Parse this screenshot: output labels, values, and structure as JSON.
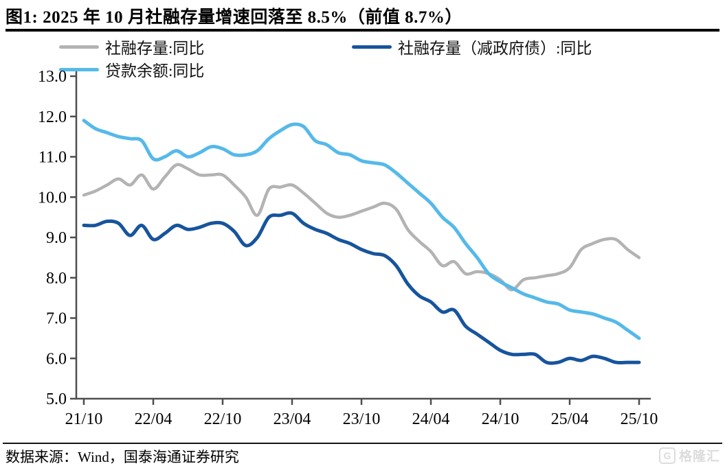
{
  "title": "图1:  2025 年 10 月社融存量增速回落至 8.5%（前值 8.7%）",
  "source_note": "数据来源：Wind，国泰海通证券研究",
  "watermark": {
    "icon_letter": "G",
    "text": "格隆汇"
  },
  "colors": {
    "gray_series": "#b3b3b3",
    "light_blue_series": "#55b9e9",
    "dark_blue_series": "#17549d",
    "axis": "#4d4d4d",
    "watermark": "#dcdcdc"
  },
  "chart_data": {
    "type": "line",
    "title": "2025 年 10 月社融存量增速回落至 8.5%（前值 8.7%）",
    "xlabel": "",
    "ylabel": "",
    "ylim": [
      5.0,
      13.0
    ],
    "y_ticks": [
      5,
      6,
      7,
      8,
      9,
      10,
      11,
      12,
      13
    ],
    "grid": false,
    "legend_position": "top",
    "x_tick_labels": [
      "21/10",
      "22/04",
      "22/10",
      "23/04",
      "23/10",
      "24/04",
      "24/10",
      "25/04",
      "25/10"
    ],
    "x": [
      "21/10",
      "21/11",
      "21/12",
      "22/01",
      "22/02",
      "22/03",
      "22/04",
      "22/05",
      "22/06",
      "22/07",
      "22/08",
      "22/09",
      "22/10",
      "22/11",
      "22/12",
      "23/01",
      "23/02",
      "23/03",
      "23/04",
      "23/05",
      "23/06",
      "23/07",
      "23/08",
      "23/09",
      "23/10",
      "23/11",
      "23/12",
      "24/01",
      "24/02",
      "24/03",
      "24/04",
      "24/05",
      "24/06",
      "24/07",
      "24/08",
      "24/09",
      "24/10",
      "24/11",
      "24/12",
      "25/01",
      "25/02",
      "25/03",
      "25/04",
      "25/05",
      "25/06",
      "25/07",
      "25/08",
      "25/09",
      "25/10"
    ],
    "series": [
      {
        "name": "社融存量:同比",
        "color": "#b3b3b3",
        "values": [
          10.05,
          10.15,
          10.3,
          10.45,
          10.3,
          10.55,
          10.2,
          10.5,
          10.8,
          10.7,
          10.55,
          10.55,
          10.55,
          10.3,
          10.0,
          9.55,
          10.2,
          10.25,
          10.3,
          10.1,
          9.85,
          9.6,
          9.5,
          9.55,
          9.65,
          9.75,
          9.85,
          9.7,
          9.2,
          8.9,
          8.65,
          8.3,
          8.4,
          8.1,
          8.15,
          8.1,
          7.95,
          7.7,
          7.95,
          8.0,
          8.05,
          8.1,
          8.25,
          8.7,
          8.85,
          8.95,
          8.95,
          8.7,
          8.5
        ]
      },
      {
        "name": "贷款余额:同比",
        "color": "#55b9e9",
        "values": [
          11.9,
          11.7,
          11.6,
          11.5,
          11.45,
          11.4,
          10.95,
          11.0,
          11.15,
          11.0,
          11.1,
          11.25,
          11.2,
          11.05,
          11.05,
          11.15,
          11.45,
          11.65,
          11.8,
          11.75,
          11.4,
          11.3,
          11.1,
          11.05,
          10.9,
          10.85,
          10.8,
          10.6,
          10.35,
          10.1,
          9.85,
          9.5,
          9.25,
          8.85,
          8.5,
          8.1,
          7.9,
          7.75,
          7.6,
          7.5,
          7.4,
          7.35,
          7.2,
          7.15,
          7.1,
          7.0,
          6.9,
          6.7,
          6.5
        ]
      },
      {
        "name": "社融存量（减政府债）:同比",
        "color": "#17549d",
        "values": [
          9.3,
          9.3,
          9.4,
          9.35,
          9.05,
          9.3,
          8.95,
          9.1,
          9.3,
          9.2,
          9.25,
          9.35,
          9.35,
          9.15,
          8.8,
          9.0,
          9.5,
          9.55,
          9.6,
          9.35,
          9.2,
          9.1,
          8.95,
          8.85,
          8.7,
          8.6,
          8.55,
          8.3,
          7.85,
          7.55,
          7.4,
          7.15,
          7.2,
          6.8,
          6.6,
          6.4,
          6.2,
          6.1,
          6.1,
          6.1,
          5.9,
          5.9,
          6.0,
          5.95,
          6.05,
          6.0,
          5.9,
          5.9,
          5.9
        ]
      }
    ]
  }
}
